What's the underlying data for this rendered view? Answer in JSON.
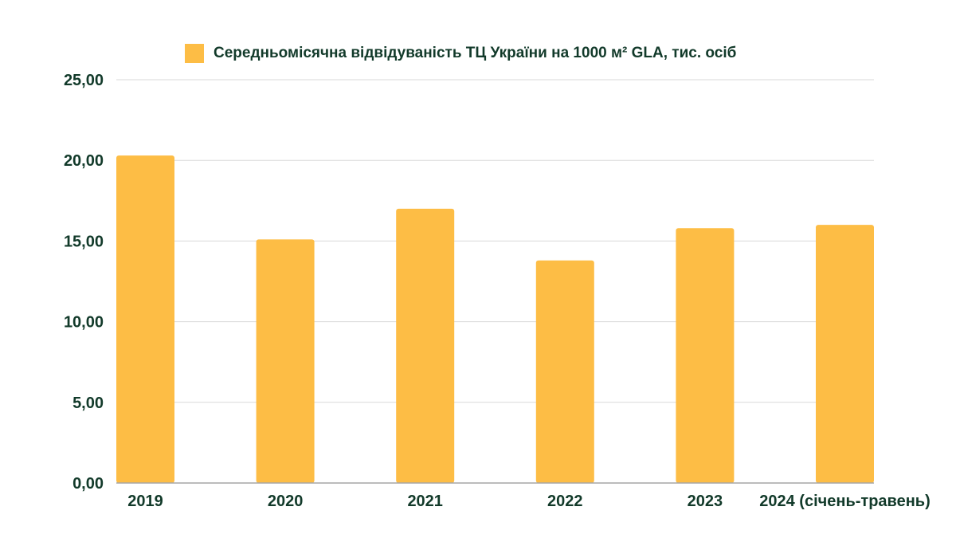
{
  "chart_data": {
    "type": "bar",
    "categories": [
      "2019",
      "2020",
      "2021",
      "2022",
      "2023",
      "2024 (січень-травень)"
    ],
    "series": [
      {
        "name": "Середньомісячна відвідуваність ТЦ України на 1000 м² GLA, тис. осіб",
        "values": [
          20.3,
          15.1,
          17.0,
          13.8,
          15.8,
          16.0
        ]
      }
    ],
    "ylim": [
      0,
      25
    ],
    "yticks": [
      "0,00",
      "5,00",
      "10,00",
      "15,00",
      "20,00",
      "25,00"
    ],
    "grid": true,
    "legend_position": "top"
  },
  "colors": {
    "bar": "#fdbd45",
    "text": "#123a2a",
    "grid": "#d9d9d9",
    "axis": "#a6a6a6"
  }
}
